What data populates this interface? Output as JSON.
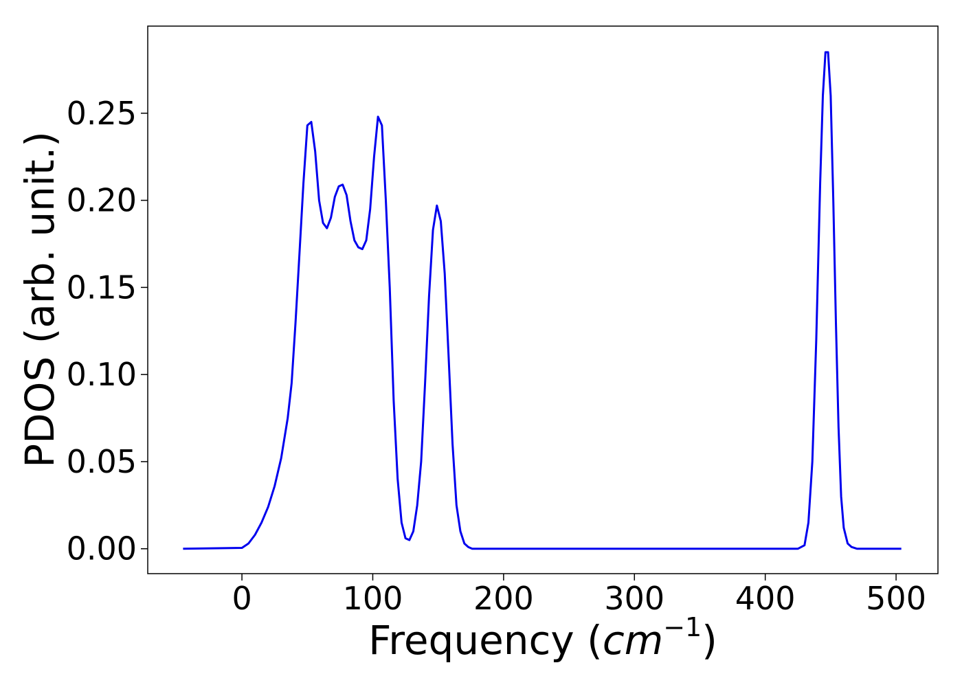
{
  "chart_data": {
    "type": "line",
    "title": "",
    "xlabel_main": "Frequency (",
    "xlabel_unit": "cm",
    "xlabel_exponent": "−1",
    "xlabel_close": ")",
    "ylabel": "PDOS (arb. unit.)",
    "xlim": [
      -72,
      532
    ],
    "ylim": [
      -0.0143,
      0.3
    ],
    "x_ticks": [
      0,
      100,
      200,
      300,
      400,
      500
    ],
    "x_tick_labels": [
      "0",
      "100",
      "200",
      "300",
      "400",
      "500"
    ],
    "y_ticks": [
      0.0,
      0.05,
      0.1,
      0.15,
      0.2,
      0.25
    ],
    "y_tick_labels": [
      "0.00",
      "0.05",
      "0.10",
      "0.15",
      "0.20",
      "0.25"
    ],
    "grid": false,
    "legend": "none",
    "series": [
      {
        "color": "#0000ee",
        "x": [
          -45,
          0,
          5,
          10,
          15,
          20,
          25,
          30,
          35,
          38,
          41,
          44,
          47,
          50,
          53,
          56,
          59,
          62,
          65,
          68,
          71,
          74,
          77,
          80,
          83,
          86,
          89,
          92,
          95,
          98,
          101,
          104,
          107,
          110,
          113,
          116,
          119,
          122,
          125,
          128,
          131,
          134,
          137,
          140,
          143,
          146,
          149,
          152,
          155,
          158,
          161,
          164,
          167,
          170,
          173,
          176,
          180,
          200,
          300,
          400,
          425,
          430,
          433,
          436,
          439,
          442,
          444,
          446,
          448,
          450,
          452,
          454,
          456,
          458,
          460,
          463,
          466,
          470,
          480,
          504
        ],
        "y": [
          0.0,
          0.0005,
          0.003,
          0.008,
          0.015,
          0.024,
          0.036,
          0.052,
          0.075,
          0.095,
          0.13,
          0.17,
          0.21,
          0.243,
          0.245,
          0.228,
          0.2,
          0.187,
          0.184,
          0.19,
          0.202,
          0.208,
          0.209,
          0.203,
          0.188,
          0.177,
          0.173,
          0.172,
          0.177,
          0.195,
          0.225,
          0.248,
          0.243,
          0.2,
          0.15,
          0.085,
          0.04,
          0.015,
          0.006,
          0.005,
          0.01,
          0.025,
          0.05,
          0.095,
          0.145,
          0.183,
          0.197,
          0.188,
          0.158,
          0.11,
          0.06,
          0.025,
          0.01,
          0.003,
          0.001,
          0.0,
          0.0,
          0.0,
          0.0,
          0.0,
          0.0,
          0.002,
          0.015,
          0.05,
          0.12,
          0.21,
          0.26,
          0.285,
          0.285,
          0.26,
          0.2,
          0.13,
          0.07,
          0.03,
          0.012,
          0.003,
          0.001,
          0.0,
          0.0,
          0.0
        ]
      }
    ]
  }
}
